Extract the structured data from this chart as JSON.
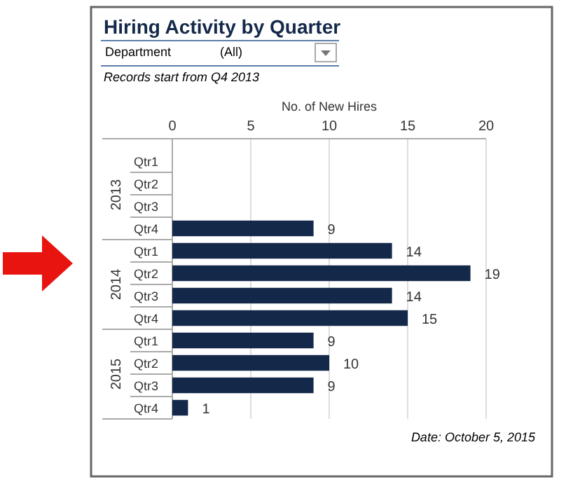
{
  "chart_data": {
    "type": "bar",
    "orientation": "horizontal",
    "title": "Hiring Activity by Quarter",
    "xlabel": "No. of New Hires",
    "categories": [
      "Qtr1",
      "Qtr2",
      "Qtr3",
      "Qtr4",
      "Qtr1",
      "Qtr2",
      "Qtr3",
      "Qtr4",
      "Qtr1",
      "Qtr2",
      "Qtr3",
      "Qtr4"
    ],
    "values": [
      null,
      null,
      null,
      9,
      14,
      19,
      14,
      15,
      9,
      10,
      9,
      1
    ],
    "color": "#14294a",
    "xlim": [
      0,
      20
    ],
    "xticks": [
      0,
      5,
      10,
      15,
      20
    ],
    "grid": "x",
    "data_labels": true,
    "annotations": [
      "Department",
      "(All)",
      "Records start from Q4 2013",
      "2013",
      "2014",
      "2015",
      "Date: October 5, 2015"
    ]
  }
}
